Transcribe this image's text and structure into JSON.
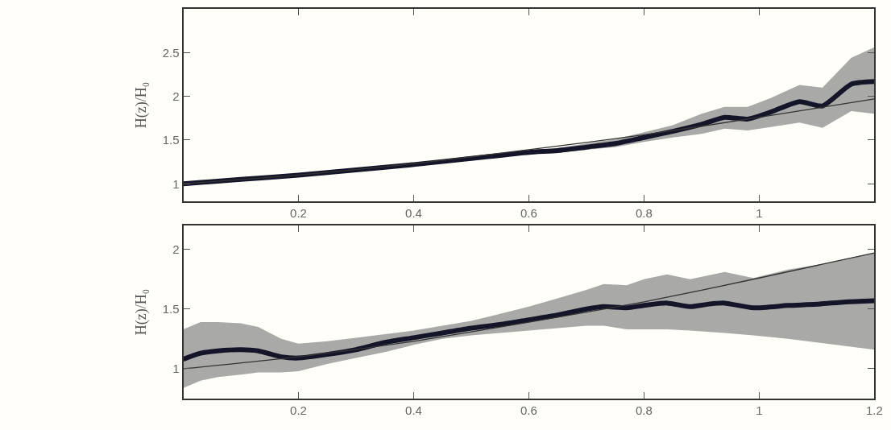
{
  "chart_data": [
    {
      "type": "line",
      "ylabel": "H(z)/H₀",
      "xlim": [
        0,
        1.2
      ],
      "ylim": [
        0.8,
        3.0
      ],
      "xticks": [
        0.2,
        0.4,
        0.6,
        0.8,
        1
      ],
      "yticks": [
        1,
        1.5,
        2,
        2.5
      ],
      "grid": false,
      "x": [
        0,
        0.1,
        0.2,
        0.3,
        0.4,
        0.5,
        0.6,
        0.65,
        0.7,
        0.75,
        0.8,
        0.85,
        0.9,
        0.94,
        0.98,
        1.02,
        1.07,
        1.11,
        1.16,
        1.2
      ],
      "series": [
        {
          "color": "#15152a",
          "values": [
            1.0,
            1.05,
            1.1,
            1.16,
            1.22,
            1.29,
            1.36,
            1.38,
            1.42,
            1.46,
            1.53,
            1.6,
            1.68,
            1.76,
            1.74,
            1.82,
            1.94,
            1.89,
            2.14,
            2.17
          ],
          "upper": [
            1.02,
            1.07,
            1.12,
            1.18,
            1.24,
            1.31,
            1.38,
            1.41,
            1.46,
            1.51,
            1.59,
            1.67,
            1.8,
            1.88,
            1.88,
            1.98,
            2.13,
            2.1,
            2.44,
            2.56
          ],
          "lower": [
            0.98,
            1.03,
            1.08,
            1.14,
            1.2,
            1.27,
            1.34,
            1.36,
            1.39,
            1.42,
            1.48,
            1.53,
            1.57,
            1.63,
            1.61,
            1.65,
            1.7,
            1.64,
            1.83,
            1.8
          ]
        },
        {
          "color": "#333333",
          "x": [
            0,
            0.2,
            0.4,
            0.6,
            0.8,
            1.0,
            1.2
          ],
          "values": [
            1.0,
            1.1,
            1.23,
            1.39,
            1.56,
            1.76,
            1.97
          ]
        }
      ]
    },
    {
      "type": "line",
      "ylabel": "H(z)/H₀",
      "xlim": [
        0,
        1.2
      ],
      "ylim": [
        0.75,
        2.2
      ],
      "xticks": [
        0.2,
        0.4,
        0.6,
        0.8,
        1,
        1.2
      ],
      "yticks": [
        1,
        1.5,
        2
      ],
      "grid": false,
      "x": [
        0,
        0.03,
        0.06,
        0.1,
        0.13,
        0.17,
        0.2,
        0.25,
        0.3,
        0.35,
        0.4,
        0.45,
        0.5,
        0.55,
        0.6,
        0.65,
        0.7,
        0.73,
        0.77,
        0.8,
        0.84,
        0.88,
        0.91,
        0.94,
        0.99,
        1.05,
        1.1,
        1.15,
        1.2
      ],
      "series": [
        {
          "color": "#15152a",
          "values": [
            1.08,
            1.13,
            1.15,
            1.16,
            1.15,
            1.1,
            1.09,
            1.12,
            1.16,
            1.22,
            1.26,
            1.3,
            1.34,
            1.37,
            1.41,
            1.45,
            1.5,
            1.52,
            1.51,
            1.53,
            1.55,
            1.52,
            1.54,
            1.55,
            1.51,
            1.53,
            1.54,
            1.56,
            1.57
          ],
          "upper": [
            1.33,
            1.39,
            1.39,
            1.38,
            1.35,
            1.25,
            1.21,
            1.23,
            1.26,
            1.29,
            1.32,
            1.36,
            1.4,
            1.46,
            1.52,
            1.59,
            1.66,
            1.71,
            1.7,
            1.75,
            1.79,
            1.75,
            1.78,
            1.81,
            1.76,
            1.83,
            1.87,
            1.92,
            1.97
          ],
          "lower": [
            0.84,
            0.9,
            0.93,
            0.95,
            0.97,
            0.97,
            0.98,
            1.04,
            1.09,
            1.14,
            1.2,
            1.25,
            1.28,
            1.3,
            1.32,
            1.34,
            1.36,
            1.36,
            1.33,
            1.33,
            1.33,
            1.32,
            1.31,
            1.3,
            1.28,
            1.25,
            1.22,
            1.19,
            1.16
          ]
        },
        {
          "color": "#333333",
          "x": [
            0,
            0.2,
            0.4,
            0.6,
            0.8,
            1.0,
            1.2
          ],
          "values": [
            1.0,
            1.1,
            1.23,
            1.39,
            1.56,
            1.76,
            1.97
          ]
        }
      ]
    }
  ]
}
